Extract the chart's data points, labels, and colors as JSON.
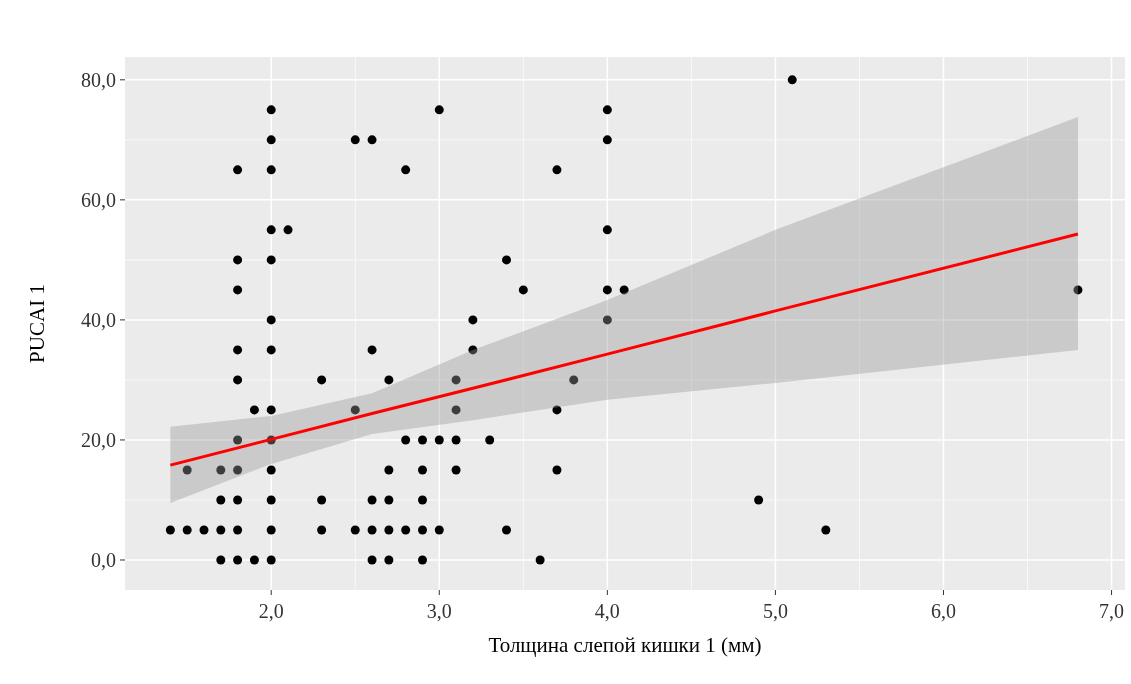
{
  "chart_data": {
    "type": "scatter",
    "xlabel": "Толщина слепой кишки 1 (мм)",
    "ylabel": "PUCAI 1",
    "xlim": [
      1.13,
      7.08
    ],
    "ylim": [
      -5,
      83.8
    ],
    "xticks": [
      {
        "value": 2,
        "label": "2,0"
      },
      {
        "value": 3,
        "label": "3,0"
      },
      {
        "value": 4,
        "label": "4,0"
      },
      {
        "value": 5,
        "label": "5,0"
      },
      {
        "value": 6,
        "label": "6,0"
      },
      {
        "value": 7,
        "label": "7,0"
      }
    ],
    "yticks": [
      {
        "value": 0,
        "label": "0,0"
      },
      {
        "value": 20,
        "label": "20,0"
      },
      {
        "value": 40,
        "label": "40,0"
      },
      {
        "value": 60,
        "label": "60,0"
      },
      {
        "value": 80,
        "label": "80,0"
      }
    ],
    "grid": true,
    "series": [
      {
        "color": "#000000",
        "marker": "circle",
        "x": [
          1.4,
          1.5,
          1.6,
          1.7,
          1.8,
          2.0,
          2.3,
          2.5,
          2.6,
          2.7,
          2.8,
          2.9,
          3.0,
          3.4,
          5.3,
          1.7,
          1.8,
          1.9,
          2.0,
          2.6,
          2.7,
          2.9,
          3.6,
          1.7,
          1.8,
          2.0,
          2.3,
          2.6,
          2.7,
          2.9,
          4.9,
          1.5,
          1.7,
          1.8,
          2.0,
          2.7,
          2.9,
          3.1,
          3.7,
          1.8,
          2.0,
          2.8,
          2.9,
          3.0,
          3.1,
          3.3,
          1.9,
          2.0,
          2.5,
          3.1,
          3.7,
          1.8,
          2.3,
          2.7,
          3.1,
          3.8,
          1.8,
          2.0,
          2.6,
          3.2,
          2.0,
          3.2,
          4.0,
          1.8,
          3.5,
          4.0,
          4.1,
          6.8,
          1.8,
          2.0,
          3.4,
          2.0,
          2.1,
          4.0,
          1.8,
          2.0,
          2.8,
          3.7,
          2.0,
          2.5,
          2.6,
          4.0,
          2.0,
          3.0,
          4.0,
          5.1
        ],
        "values": [
          5,
          5,
          5,
          5,
          5,
          5,
          5,
          5,
          5,
          5,
          5,
          5,
          5,
          5,
          5,
          0,
          0,
          0,
          0,
          0,
          0,
          0,
          0,
          10,
          10,
          10,
          10,
          10,
          10,
          10,
          10,
          15,
          15,
          15,
          15,
          15,
          15,
          15,
          15,
          20,
          20,
          20,
          20,
          20,
          20,
          20,
          25,
          25,
          25,
          25,
          25,
          30,
          30,
          30,
          30,
          30,
          35,
          35,
          35,
          35,
          40,
          40,
          40,
          45,
          45,
          45,
          45,
          45,
          50,
          50,
          50,
          55,
          55,
          55,
          65,
          65,
          65,
          65,
          70,
          70,
          70,
          70,
          75,
          75,
          75,
          80
        ]
      },
      {
        "type": "line",
        "color": "#ff0000",
        "x": [
          1.4,
          2.0,
          2.6,
          3.2,
          4.0,
          5.0,
          6.8
        ],
        "values": [
          15.8,
          20.1,
          24.4,
          28.6,
          34.3,
          41.5,
          54.3
        ],
        "lower": [
          9.5,
          16,
          21,
          23.3,
          26.7,
          29.5,
          35
        ],
        "upper": [
          22.2,
          24,
          27.8,
          35,
          43.3,
          55,
          73.8
        ]
      }
    ]
  }
}
